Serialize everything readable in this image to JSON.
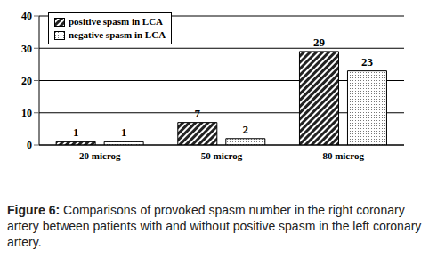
{
  "chart_data": {
    "type": "bar",
    "caption": "Figure 6: Comparisons of provoked spasm number in the right coronary artery between patients with and without positive spasm in the left coronary artery.",
    "categories": [
      "20 microg",
      "50 microg",
      "80 microg"
    ],
    "series": [
      {
        "name": "positive spasm in LCA",
        "color": "#222222",
        "values": [
          1,
          7,
          29
        ]
      },
      {
        "name": "negative spasm in LCA",
        "color": "#777777",
        "values": [
          1,
          2,
          23
        ]
      }
    ],
    "ylim": [
      0,
      40
    ],
    "yticks": [
      0,
      10,
      20,
      30,
      40
    ],
    "grid": true,
    "legend": "upper left",
    "data_labels": true
  }
}
